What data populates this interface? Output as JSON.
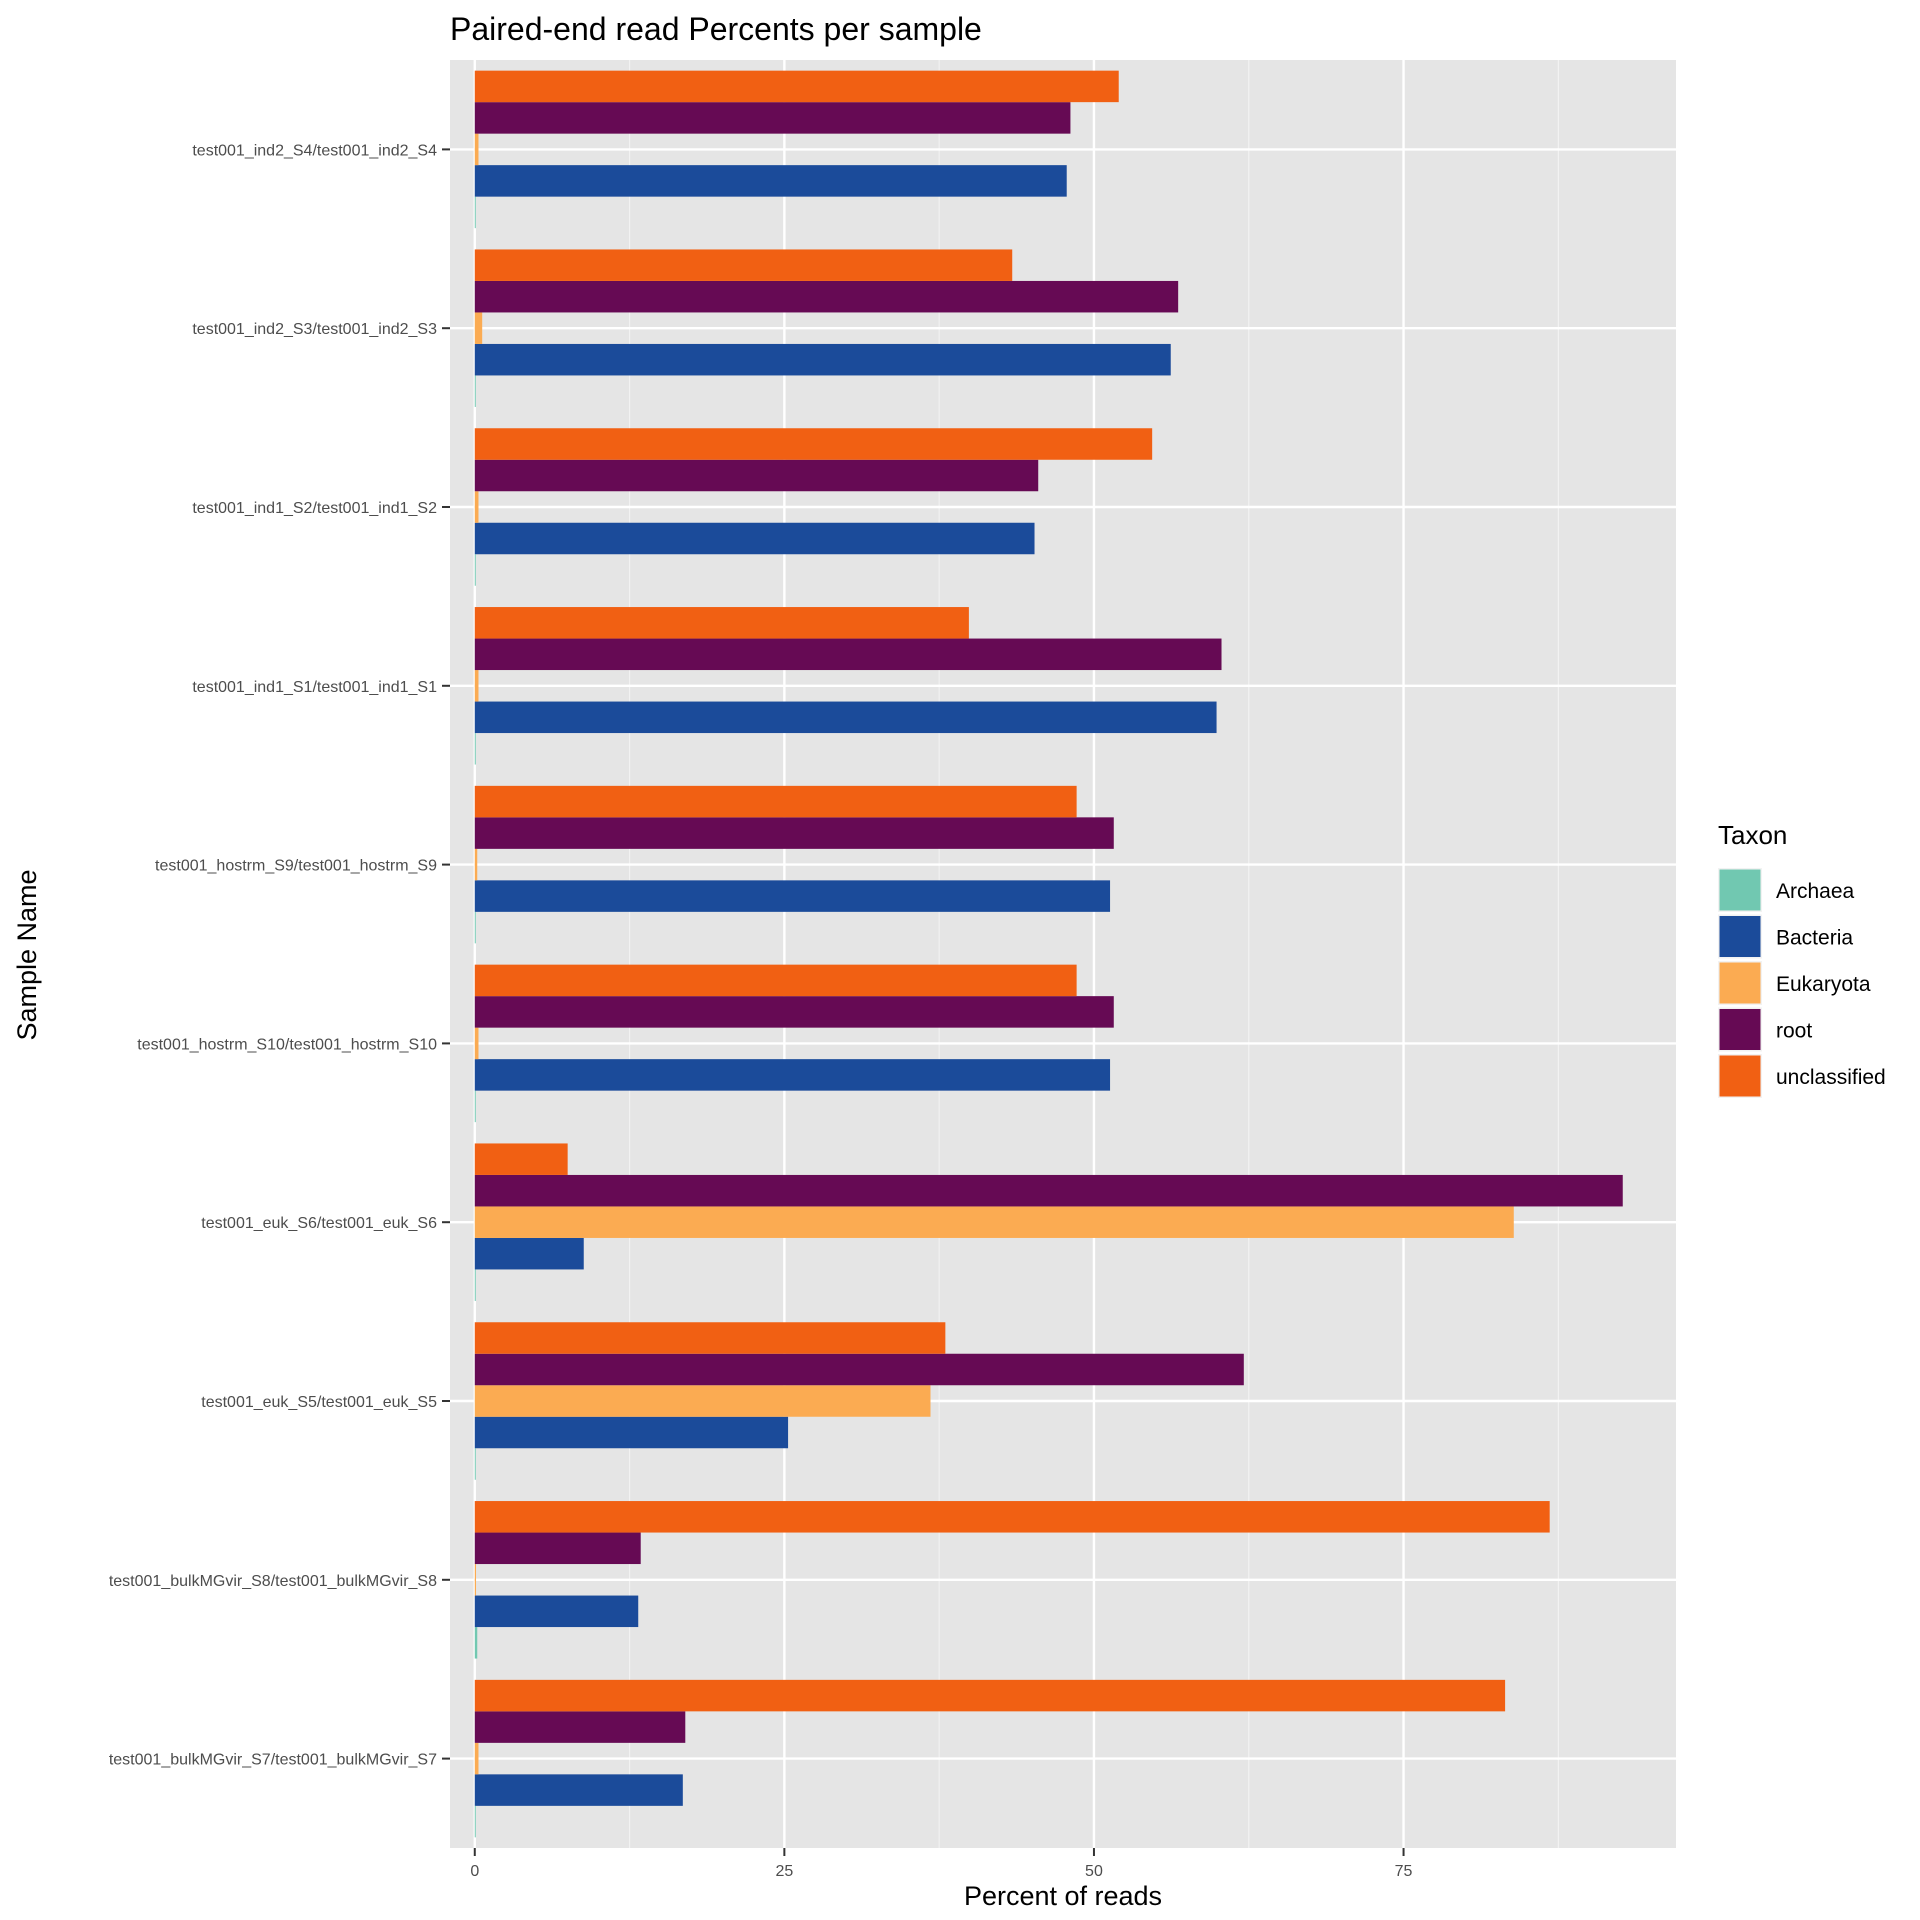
{
  "chart_data": {
    "type": "bar",
    "orientation": "horizontal",
    "title": "Paired-end read Percents per sample",
    "xlabel": "Percent of reads",
    "ylabel": "Sample Name",
    "xlim": [
      -2,
      97
    ],
    "x_ticks": [
      0,
      25,
      50,
      75
    ],
    "grid": true,
    "legend_title": "Taxon",
    "legend_position": "right",
    "categories": [
      "test001_ind2_S4/test001_ind2_S4",
      "test001_ind2_S3/test001_ind2_S3",
      "test001_ind1_S2/test001_ind1_S2",
      "test001_ind1_S1/test001_ind1_S1",
      "test001_hostrm_S9/test001_hostrm_S9",
      "test001_hostrm_S10/test001_hostrm_S10",
      "test001_euk_S6/test001_euk_S6",
      "test001_euk_S5/test001_euk_S5",
      "test001_bulkMGvir_S8/test001_bulkMGvir_S8",
      "test001_bulkMGvir_S7/test001_bulkMGvir_S7"
    ],
    "series": [
      {
        "name": "Archaea",
        "color": "#71c8b1",
        "values": [
          0.05,
          0.05,
          0.05,
          0.05,
          0.05,
          0.05,
          0.05,
          0.05,
          0.2,
          0.05
        ]
      },
      {
        "name": "Bacteria",
        "color": "#1b4b9a",
        "values": [
          47.8,
          56.2,
          45.2,
          59.9,
          51.3,
          51.3,
          8.8,
          25.3,
          13.2,
          16.8
        ]
      },
      {
        "name": "Eukaryota",
        "color": "#fbab52",
        "values": [
          0.3,
          0.6,
          0.3,
          0.3,
          0.2,
          0.3,
          83.9,
          36.8,
          0.1,
          0.3
        ]
      },
      {
        "name": "root",
        "color": "#660a54",
        "values": [
          48.1,
          56.8,
          45.5,
          60.3,
          51.6,
          51.6,
          92.7,
          62.1,
          13.4,
          17.0
        ]
      },
      {
        "name": "unclassified",
        "color": "#f16013",
        "values": [
          52.0,
          43.4,
          54.7,
          39.9,
          48.6,
          48.6,
          7.5,
          38.0,
          86.8,
          83.2
        ]
      }
    ]
  }
}
